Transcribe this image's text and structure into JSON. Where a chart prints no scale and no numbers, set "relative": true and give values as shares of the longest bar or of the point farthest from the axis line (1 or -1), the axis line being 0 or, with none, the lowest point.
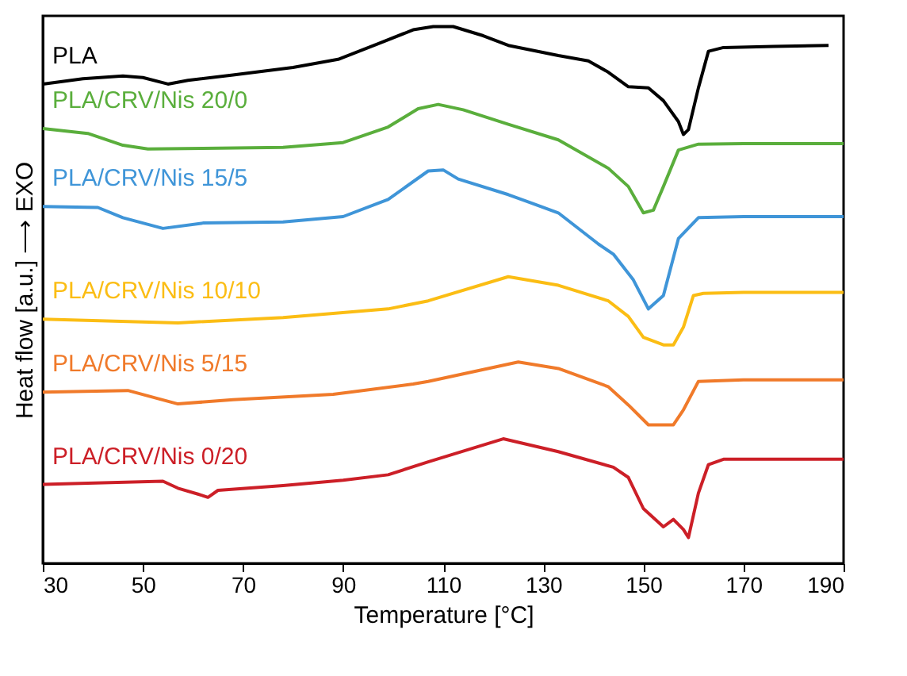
{
  "chart_data": {
    "type": "line",
    "relative": true,
    "xlabel": "Temperature [°C]",
    "ylabel": "Heat flow [a.u.] ⟶ EXO",
    "xlim": [
      30,
      190
    ],
    "xticks": [
      30,
      50,
      70,
      90,
      110,
      130,
      150,
      170,
      190
    ],
    "grid": false,
    "legend": false,
    "marker": "none",
    "line_style": "solid",
    "series": [
      {
        "name": "PLA",
        "color": "#000000",
        "x": [
          30,
          38,
          46,
          50,
          55,
          59,
          68,
          80,
          89,
          97,
          104,
          108,
          112,
          118,
          123,
          133,
          139,
          143,
          147,
          151,
          154,
          157,
          158,
          159,
          161,
          163,
          166,
          176,
          187
        ],
        "values": [
          0.893,
          0.903,
          0.908,
          0.905,
          0.893,
          0.9,
          0.91,
          0.924,
          0.939,
          0.968,
          0.994,
          1.0,
          1.0,
          0.983,
          0.965,
          0.946,
          0.936,
          0.915,
          0.888,
          0.886,
          0.862,
          0.823,
          0.799,
          0.808,
          0.886,
          0.954,
          0.961,
          0.963,
          0.965
        ]
      },
      {
        "name": "PLA/CRV/Nis 20/0",
        "color": "#5aae3c",
        "x": [
          30,
          39,
          46,
          51,
          62,
          78,
          90,
          99,
          105,
          109,
          114,
          123,
          133,
          143,
          147,
          150,
          152,
          154,
          157,
          161,
          170,
          190
        ],
        "values": [
          0.81,
          0.801,
          0.779,
          0.772,
          0.773,
          0.775,
          0.784,
          0.813,
          0.847,
          0.855,
          0.845,
          0.818,
          0.789,
          0.736,
          0.702,
          0.653,
          0.658,
          0.702,
          0.77,
          0.781,
          0.782,
          0.782
        ]
      },
      {
        "name": "PLA/CRV/Nis 15/5",
        "color": "#3f95d8",
        "x": [
          30,
          41,
          46,
          54,
          62,
          78,
          90,
          99,
          107,
          110,
          113,
          123,
          133,
          141,
          144,
          148,
          151,
          154,
          157,
          161,
          170,
          190
        ],
        "values": [
          0.665,
          0.663,
          0.644,
          0.624,
          0.634,
          0.636,
          0.646,
          0.678,
          0.731,
          0.733,
          0.716,
          0.687,
          0.653,
          0.595,
          0.576,
          0.528,
          0.474,
          0.499,
          0.605,
          0.644,
          0.646,
          0.646
        ]
      },
      {
        "name": "PLA/CRV/Nis 10/10",
        "color": "#fbbd14",
        "x": [
          30,
          57,
          78,
          99,
          107,
          123,
          133,
          143,
          147,
          150,
          154,
          156,
          158,
          160,
          162,
          170,
          190
        ],
        "values": [
          0.455,
          0.448,
          0.458,
          0.474,
          0.489,
          0.534,
          0.518,
          0.489,
          0.46,
          0.421,
          0.407,
          0.407,
          0.44,
          0.499,
          0.503,
          0.505,
          0.505
        ]
      },
      {
        "name": "PLA/CRV/Nis 5/15",
        "color": "#f07a2a",
        "x": [
          30,
          47,
          53,
          57,
          68,
          88,
          104,
          107,
          125,
          133,
          143,
          147,
          151,
          156,
          158,
          161,
          170,
          190
        ],
        "values": [
          0.319,
          0.322,
          0.307,
          0.297,
          0.305,
          0.315,
          0.334,
          0.339,
          0.375,
          0.363,
          0.329,
          0.295,
          0.258,
          0.258,
          0.286,
          0.339,
          0.342,
          0.342
        ]
      },
      {
        "name": "PLA/CRV/Nis 0/20",
        "color": "#cc1f27",
        "x": [
          30,
          54,
          57,
          61,
          63,
          65,
          78,
          90,
          99,
          107,
          122,
          133,
          144,
          147,
          150,
          154,
          156,
          158,
          159,
          161,
          163,
          166,
          190
        ],
        "values": [
          0.147,
          0.153,
          0.14,
          0.129,
          0.123,
          0.136,
          0.145,
          0.155,
          0.165,
          0.189,
          0.232,
          0.208,
          0.179,
          0.16,
          0.102,
          0.068,
          0.082,
          0.063,
          0.048,
          0.131,
          0.184,
          0.194,
          0.194
        ]
      }
    ]
  }
}
